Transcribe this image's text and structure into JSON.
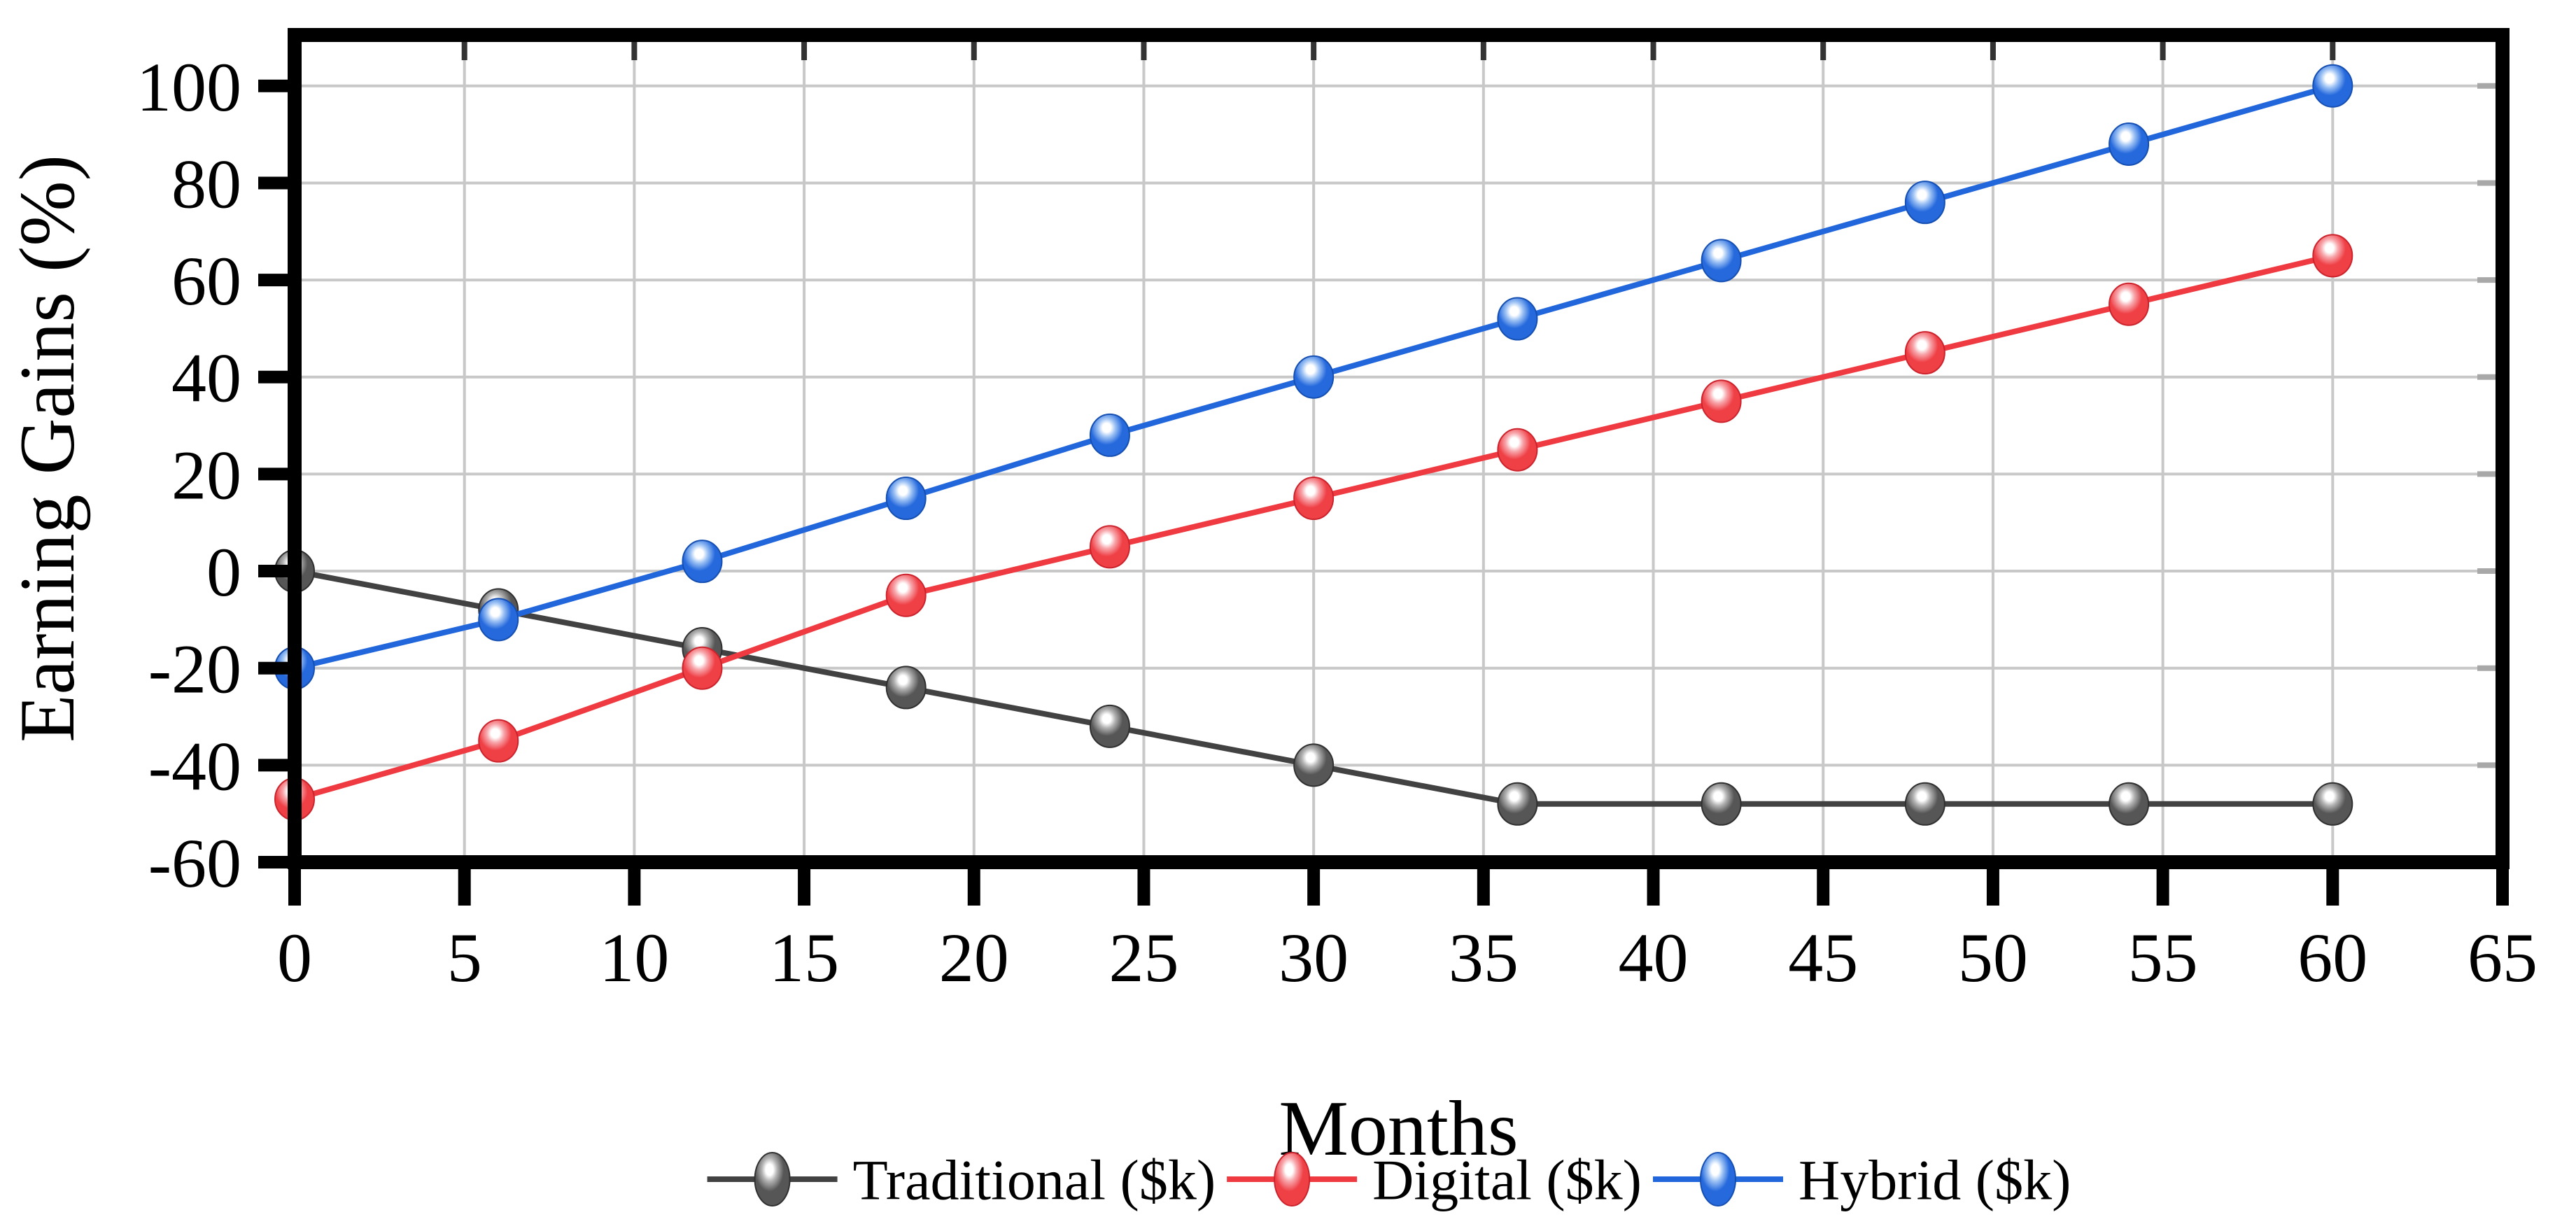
{
  "figure": {
    "xlabel": "Months",
    "ylabel": "Earning Gains (%)"
  },
  "chart_data": {
    "type": "line",
    "title": "",
    "xlabel": "Months",
    "ylabel": "Earning Gains (%)",
    "x": [
      0,
      6,
      12,
      18,
      24,
      30,
      36,
      42,
      48,
      54,
      60
    ],
    "series": [
      {
        "name": "Traditional ($k)",
        "values": [
          0,
          -8,
          -16,
          -24,
          -32,
          -40,
          -48,
          -48,
          -48,
          -48,
          -48
        ],
        "line_color": "#424242",
        "ball_color": "#565656",
        "ball_dark": "#303030",
        "ball_light": "#b2b2b2"
      },
      {
        "name": "Digital ($k)",
        "values": [
          -47,
          -35,
          -20,
          -5,
          5,
          15,
          25,
          35,
          45,
          55,
          65
        ],
        "line_color": "#ee3a40",
        "ball_color": "#ef4046",
        "ball_dark": "#cc232d",
        "ball_light": "#f7a6ab"
      },
      {
        "name": "Hybrid ($k)",
        "values": [
          -20,
          -10,
          2,
          15,
          28,
          40,
          52,
          64,
          76,
          88,
          100
        ],
        "line_color": "#2166db",
        "ball_color": "#2569dd",
        "ball_dark": "#164fb2",
        "ball_light": "#9dc2f4"
      }
    ],
    "xlim": [
      0,
      65
    ],
    "ylim": [
      -60,
      110.5
    ],
    "xticks": [
      0,
      5,
      10,
      15,
      20,
      25,
      30,
      35,
      40,
      45,
      50,
      55,
      60,
      65
    ],
    "yticks": [
      -60,
      -40,
      -20,
      0,
      20,
      40,
      60,
      80,
      100
    ],
    "grid": true,
    "grid_color": "#c8c8c8",
    "axis_color": "#000000",
    "background": "#ffffff",
    "legend_position": "bottom"
  }
}
